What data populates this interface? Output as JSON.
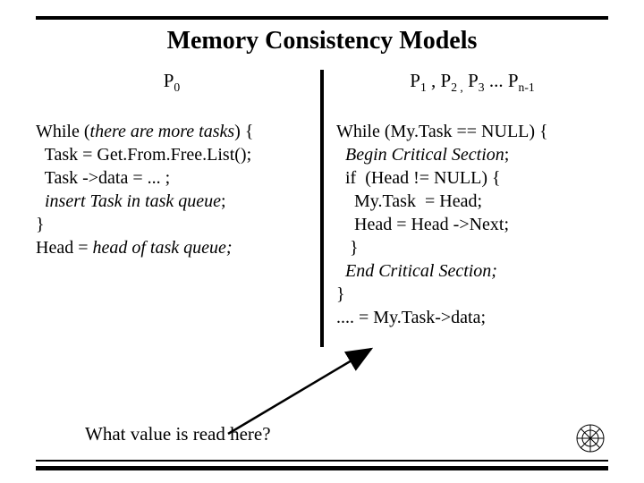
{
  "title": "Memory Consistency Models",
  "left": {
    "header_main": "P",
    "header_sub": "0",
    "lines": [
      {
        "pre": "While (",
        "it": "there are more tasks",
        "post": ") {"
      },
      {
        "pre": "  Task = Get.From.Free.List();",
        "it": "",
        "post": ""
      },
      {
        "pre": "  Task ->data = ... ;",
        "it": "",
        "post": ""
      },
      {
        "pre": "  ",
        "it": "insert Task in task queue",
        "post": ";"
      },
      {
        "pre": "}",
        "it": "",
        "post": ""
      },
      {
        "pre": "Head = ",
        "it": "head of task queue;",
        "post": ""
      }
    ]
  },
  "right": {
    "header_html": "P<span class=\"sub\">1</span> , P<span class=\"sub\">2 ,</span> P<span class=\"sub\">3</span> ... P<span class=\"sub\">n-1</span>",
    "lines": [
      {
        "pre": "While (My.Task == NULL) {",
        "it": "",
        "post": ""
      },
      {
        "pre": "  ",
        "it": "Begin Critical Section",
        "post": ";"
      },
      {
        "pre": "  if  (Head != NULL) {",
        "it": "",
        "post": ""
      },
      {
        "pre": "    My.Task  = Head;",
        "it": "",
        "post": ""
      },
      {
        "pre": "    Head = Head ->Next;",
        "it": "",
        "post": ""
      },
      {
        "pre": "   }",
        "it": "",
        "post": ""
      },
      {
        "pre": "  ",
        "it": "End Critical Section;",
        "post": ""
      },
      {
        "pre": "}",
        "it": "",
        "post": ""
      },
      {
        "pre": ".... = My.Task->data;",
        "it": "",
        "post": ""
      }
    ]
  },
  "question": "What value is read here?",
  "colors": {
    "rule": "#000000",
    "text": "#000000",
    "bg": "#ffffff"
  },
  "fonts": {
    "title_size_pt": 28,
    "body_size_pt": 20,
    "header_size_pt": 21
  }
}
